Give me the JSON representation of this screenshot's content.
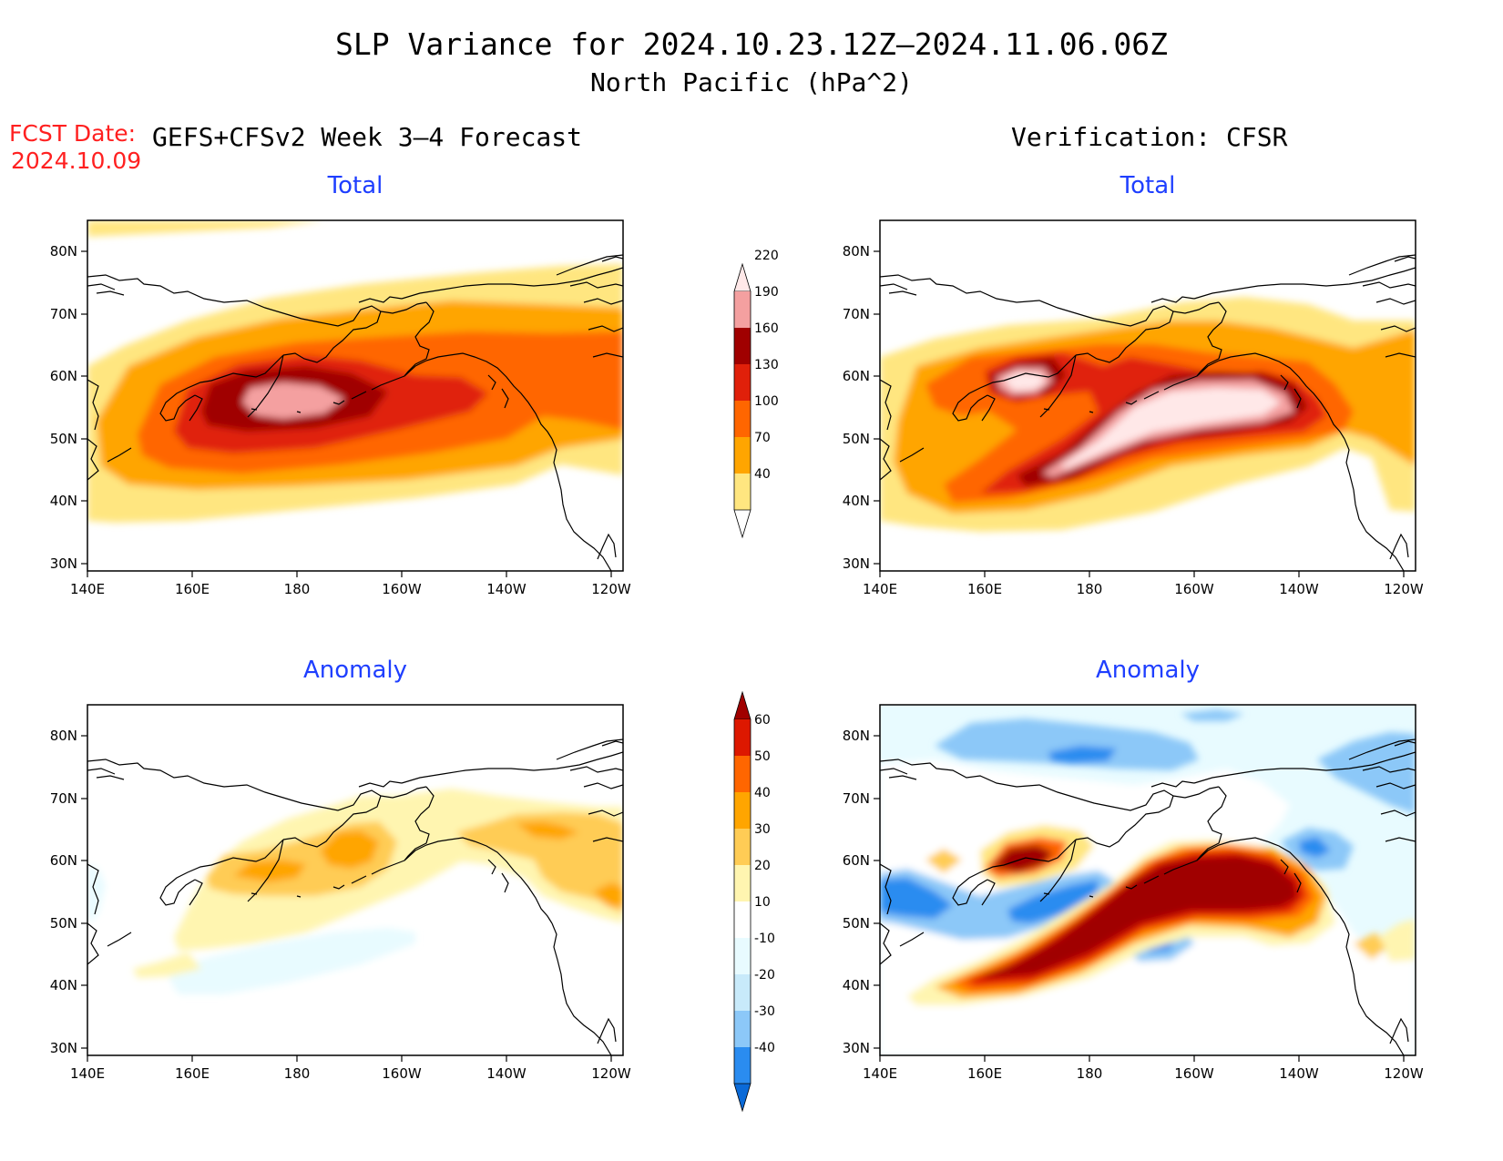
{
  "figure": {
    "title": "SLP Variance for 2024.10.23.12Z–2024.11.06.06Z",
    "subtitle": "North Pacific (hPa^2)",
    "fcst_label": "FCST Date:",
    "fcst_date": "2024.10.09",
    "left_header": "GEFS+CFSv2 Week 3–4 Forecast",
    "right_header": "Verification: CFSR"
  },
  "axes": {
    "x_ticks": [
      "140E",
      "160E",
      "180",
      "160W",
      "140W",
      "120W"
    ],
    "y_ticks": [
      "30N",
      "40N",
      "50N",
      "60N",
      "70N",
      "80N"
    ]
  },
  "panels": [
    {
      "id": "forecast-total",
      "title": "Total"
    },
    {
      "id": "verification-total",
      "title": "Total"
    },
    {
      "id": "forecast-anomaly",
      "title": "Anomaly"
    },
    {
      "id": "verification-anomaly",
      "title": "Anomaly"
    }
  ],
  "colorbars": {
    "total": {
      "levels": [
        "40",
        "70",
        "100",
        "130",
        "160",
        "190",
        "220"
      ],
      "colors": [
        "#ffffff",
        "#ffe680",
        "#ffa500",
        "#ff6600",
        "#e0200a",
        "#a00000",
        "#f4a0a0",
        "#ffe8e8"
      ]
    },
    "anomaly": {
      "levels": [
        "-40",
        "-30",
        "-20",
        "-10",
        "10",
        "20",
        "30",
        "40",
        "50",
        "60"
      ],
      "colors": [
        "#0a6ad8",
        "#2a8cf0",
        "#8cc8f8",
        "#c8eafa",
        "#e8fbff",
        "#ffffff",
        "#fff5b0",
        "#ffcc55",
        "#ffa500",
        "#ff6600",
        "#dd1800",
        "#a00000"
      ]
    }
  }
}
